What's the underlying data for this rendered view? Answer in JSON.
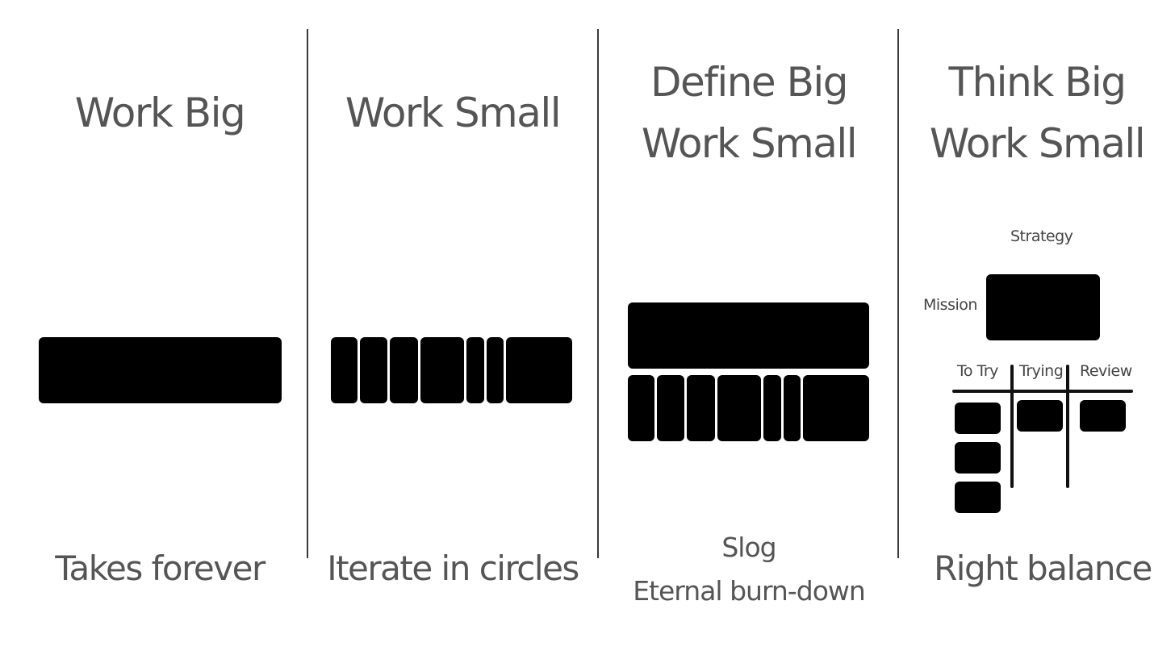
{
  "panels": [
    {
      "title_lines": [
        "Work Big"
      ],
      "caption_lines": [
        "Takes forever"
      ]
    },
    {
      "title_lines": [
        "Work Small"
      ],
      "caption_lines": [
        "Iterate in circles"
      ]
    },
    {
      "title_lines": [
        "Define Big",
        "Work Small"
      ],
      "caption_lines": [
        "Slog",
        "Eternal burn-down"
      ]
    },
    {
      "title_lines": [
        "Think Big",
        "Work Small"
      ],
      "caption_lines": [
        "Right balance"
      ]
    }
  ],
  "board": {
    "strategy_label": "Strategy",
    "mission_label": "Mission",
    "columns": [
      "To Try",
      "Trying",
      "Review"
    ]
  }
}
